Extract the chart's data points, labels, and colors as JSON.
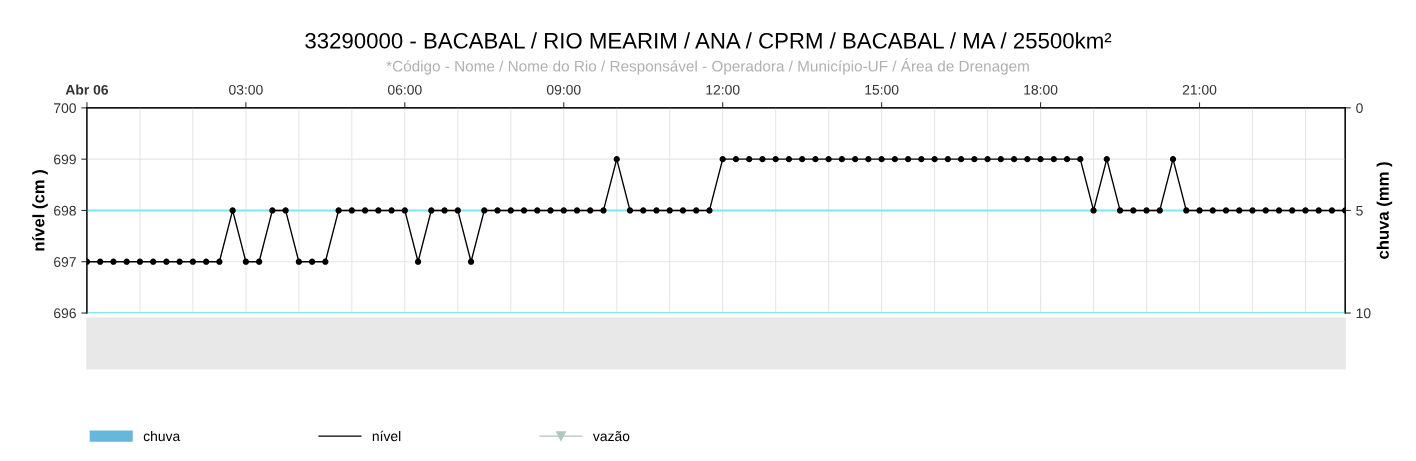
{
  "chart_data": {
    "type": "line",
    "title": "33290000 - BACABAL / RIO MEARIM / ANA / CPRM / BACABAL / MA / 25500km²",
    "subtitle": "*Código - Nome / Nome do Rio / Responsável - Operadora / Município-UF / Área de Drenagem",
    "ylabel": "nível (cm )",
    "y2label": "chuva (mm )",
    "x": [
      0,
      0.25,
      0.5,
      0.75,
      1,
      1.25,
      1.5,
      1.75,
      2,
      2.25,
      2.5,
      2.75,
      3,
      3.25,
      3.5,
      3.75,
      4,
      4.25,
      4.5,
      4.75,
      5,
      5.25,
      5.5,
      5.75,
      6,
      6.25,
      6.5,
      6.75,
      7,
      7.25,
      7.5,
      7.75,
      8,
      8.25,
      8.5,
      8.75,
      9,
      9.25,
      9.5,
      9.75,
      10,
      10.25,
      10.5,
      10.75,
      11,
      11.25,
      11.5,
      11.75,
      12,
      12.25,
      12.5,
      12.75,
      13,
      13.25,
      13.5,
      13.75,
      14,
      14.25,
      14.5,
      14.75,
      15,
      15.25,
      15.5,
      15.75,
      16,
      16.25,
      16.5,
      16.75,
      17,
      17.25,
      17.5,
      17.75,
      18,
      18.25,
      18.5,
      18.75,
      19,
      19.25,
      19.5,
      19.75,
      20,
      20.25,
      20.5,
      20.75,
      21,
      21.25,
      21.5,
      21.75,
      22,
      22.25,
      22.5,
      22.75,
      23,
      23.25,
      23.5,
      23.75
    ],
    "series": [
      {
        "name": "chuva",
        "type": "bar",
        "color": "#67b7dc",
        "values": [
          null,
          null,
          null,
          null,
          null,
          null,
          null,
          null,
          null,
          null,
          null,
          null,
          null,
          null,
          null,
          null,
          null,
          null,
          null,
          null,
          null,
          null,
          null,
          null,
          null,
          null,
          null,
          null,
          null,
          null,
          null,
          null,
          null,
          null,
          null,
          null,
          null,
          null,
          null,
          null,
          null,
          null,
          null,
          null,
          null,
          null,
          null,
          null,
          null,
          null,
          null,
          null,
          null,
          null,
          null,
          null,
          null,
          null,
          null,
          null,
          null,
          null,
          null,
          null,
          null,
          null,
          null,
          null,
          null,
          null,
          null,
          null,
          null,
          null,
          null,
          null,
          null,
          null,
          null,
          null,
          null,
          null,
          null,
          null,
          null,
          null,
          null,
          null,
          null,
          null,
          null,
          null,
          null,
          null,
          null,
          null
        ]
      },
      {
        "name": "nível",
        "color": "#000000",
        "marker": "circle",
        "values": [
          697,
          697,
          697,
          697,
          697,
          697,
          697,
          697,
          697,
          697,
          697,
          698,
          697,
          697,
          698,
          698,
          697,
          697,
          697,
          698,
          698,
          698,
          698,
          698,
          698,
          697,
          698,
          698,
          698,
          697,
          698,
          698,
          698,
          698,
          698,
          698,
          698,
          698,
          698,
          698,
          699,
          698,
          698,
          698,
          698,
          698,
          698,
          698,
          699,
          699,
          699,
          699,
          699,
          699,
          699,
          699,
          699,
          699,
          699,
          699,
          699,
          699,
          699,
          699,
          699,
          699,
          699,
          699,
          699,
          699,
          699,
          699,
          699,
          699,
          699,
          699,
          698,
          699,
          698,
          698,
          698,
          698,
          699,
          698,
          698,
          698,
          698,
          698,
          698,
          698,
          698,
          698,
          698,
          698,
          698,
          698
        ]
      },
      {
        "name": "vazão",
        "type": "line",
        "color": "#b0c4c0",
        "marker": "triangle",
        "values": [
          null,
          null,
          null,
          null,
          null,
          null,
          null,
          null,
          null,
          null,
          null,
          null,
          null,
          null,
          null,
          null,
          null,
          null,
          null,
          null,
          null,
          null,
          null,
          null,
          null,
          null,
          null,
          null,
          null,
          null,
          null,
          null,
          null,
          null,
          null,
          null,
          null,
          null,
          null,
          null,
          null,
          null,
          null,
          null,
          null,
          null,
          null,
          null,
          null,
          null,
          null,
          null,
          null,
          null,
          null,
          null,
          null,
          null,
          null,
          null,
          null,
          null,
          null,
          null,
          null,
          null,
          null,
          null,
          null,
          null,
          null,
          null,
          null,
          null,
          null,
          null,
          null,
          null,
          null,
          null,
          null,
          null,
          null,
          null,
          null,
          null,
          null,
          null,
          null,
          null,
          null,
          null,
          null,
          null,
          null,
          null
        ]
      }
    ],
    "xlim": [
      0,
      23.75
    ],
    "xticks": [
      {
        "value": 0,
        "label": "Abr 06"
      },
      {
        "value": 1,
        "label": null
      },
      {
        "value": 2,
        "label": null
      },
      {
        "value": 3,
        "label": "03:00"
      },
      {
        "value": 4,
        "label": null
      },
      {
        "value": 5,
        "label": null
      },
      {
        "value": 6,
        "label": "06:00"
      },
      {
        "value": 7,
        "label": null
      },
      {
        "value": 8,
        "label": null
      },
      {
        "value": 9,
        "label": "09:00"
      },
      {
        "value": 10,
        "label": null
      },
      {
        "value": 11,
        "label": null
      },
      {
        "value": 12,
        "label": "12:00"
      },
      {
        "value": 13,
        "label": null
      },
      {
        "value": 14,
        "label": null
      },
      {
        "value": 15,
        "label": "15:00"
      },
      {
        "value": 16,
        "label": null
      },
      {
        "value": 17,
        "label": null
      },
      {
        "value": 18,
        "label": "18:00"
      },
      {
        "value": 19,
        "label": null
      },
      {
        "value": 20,
        "label": null
      },
      {
        "value": 21,
        "label": "21:00"
      },
      {
        "value": 22,
        "label": null
      },
      {
        "value": 23,
        "label": null
      }
    ],
    "ylim": [
      696,
      700
    ],
    "yticks": [
      696,
      697,
      698,
      699,
      700
    ],
    "y2lim": [
      10,
      0
    ],
    "y2ticks": [
      0,
      5,
      10
    ],
    "ref_lines": [
      {
        "axis": "y",
        "value": 698,
        "color": "#7fe8ee"
      },
      {
        "axis": "y",
        "value": 696,
        "color": "#7fe8ee"
      }
    ],
    "grid": true,
    "legend": "bottom",
    "line_style": "solid"
  }
}
